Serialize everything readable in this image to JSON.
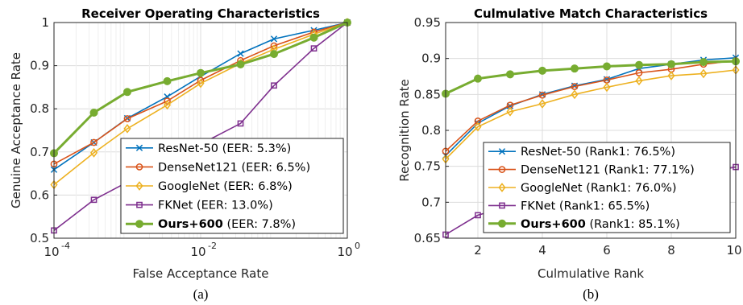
{
  "chart_data": [
    {
      "type": "line",
      "title": "Receiver Operating Characteristics",
      "xlabel": "False Acceptance Rate",
      "ylabel": "Genuine Acceptance Rate",
      "xscale": "log",
      "xlim": [
        0.0001,
        1
      ],
      "ylim": [
        0.5,
        1
      ],
      "xticks": [
        {
          "value": 0.0001,
          "base": "10",
          "exp": "-4"
        },
        {
          "value": 0.01,
          "base": "10",
          "exp": "-2"
        },
        {
          "value": 1,
          "base": "10",
          "exp": "0"
        }
      ],
      "yticks": [
        "0.5",
        "0.6",
        "0.7",
        "0.8",
        "0.9",
        "1"
      ],
      "grid": true,
      "legend_position": "bottom-right",
      "caption": "(a)",
      "series": [
        {
          "label_main": "ResNet-50",
          "label_rest": " (EER: 5.3%)",
          "color": "#0072BD",
          "marker": "x",
          "x": [
            0.0001,
            0.00035,
            0.001,
            0.0035,
            0.01,
            0.035,
            0.1,
            0.35,
            1
          ],
          "y": [
            0.659,
            0.722,
            0.778,
            0.828,
            0.875,
            0.928,
            0.962,
            0.982,
            1.0
          ]
        },
        {
          "label_main": "DenseNet121",
          "label_rest": " (EER: 6.5%)",
          "color": "#D95319",
          "marker": "o",
          "x": [
            0.0001,
            0.00035,
            0.001,
            0.0035,
            0.01,
            0.035,
            0.1,
            0.35,
            1
          ],
          "y": [
            0.672,
            0.722,
            0.777,
            0.818,
            0.866,
            0.912,
            0.946,
            0.978,
            1.0
          ]
        },
        {
          "label_main": "GoogleNet",
          "label_rest": " (EER: 6.8%)",
          "color": "#EDB120",
          "marker": "d",
          "x": [
            0.0001,
            0.00035,
            0.001,
            0.0035,
            0.01,
            0.035,
            0.1,
            0.35,
            1
          ],
          "y": [
            0.624,
            0.698,
            0.754,
            0.809,
            0.859,
            0.905,
            0.938,
            0.973,
            1.0
          ]
        },
        {
          "label_main": "FKNet",
          "label_rest": " (EER: 13.0%)",
          "color": "#7E2F8E",
          "marker": "s",
          "x": [
            0.0001,
            0.00035,
            0.001,
            0.035,
            0.1,
            0.35,
            1
          ],
          "y": [
            0.518,
            0.589,
            0.63,
            0.766,
            0.854,
            0.94,
            1.0
          ]
        },
        {
          "label_main": "Ours+600",
          "label_rest": " (EER: 7.8%)",
          "color": "#77AC30",
          "marker": "o",
          "bold": true,
          "x": [
            0.0001,
            0.00035,
            0.001,
            0.0035,
            0.01,
            0.035,
            0.1,
            0.35,
            1
          ],
          "y": [
            0.697,
            0.791,
            0.839,
            0.864,
            0.883,
            0.903,
            0.927,
            0.965,
            1.0
          ]
        }
      ]
    },
    {
      "type": "line",
      "title": "Culmulative Match Characteristics",
      "xlabel": "Culmulative Rank",
      "ylabel": "Recognition Rate",
      "xscale": "linear",
      "xlim": [
        1,
        10
      ],
      "ylim": [
        0.65,
        0.95
      ],
      "xticks": [
        "2",
        "4",
        "6",
        "8",
        "10"
      ],
      "yticks": [
        "0.65",
        "0.7",
        "0.75",
        "0.8",
        "0.85",
        "0.9",
        "0.95"
      ],
      "grid": true,
      "legend_position": "bottom-right",
      "caption": "(b)",
      "series": [
        {
          "label_main": "ResNet-50",
          "label_rest": " (Rank1: 76.5%)",
          "color": "#0072BD",
          "marker": "x",
          "x": [
            1,
            2,
            3,
            4,
            5,
            6,
            7,
            8,
            9,
            10
          ],
          "y": [
            0.765,
            0.81,
            0.834,
            0.85,
            0.862,
            0.871,
            0.886,
            0.892,
            0.898,
            0.901
          ]
        },
        {
          "label_main": "DenseNet121",
          "label_rest": " (Rank1: 77.1%)",
          "color": "#D95319",
          "marker": "o",
          "x": [
            1,
            2,
            3,
            4,
            5,
            6,
            7,
            8,
            9,
            10
          ],
          "y": [
            0.771,
            0.813,
            0.835,
            0.849,
            0.861,
            0.87,
            0.88,
            0.885,
            0.892,
            0.897
          ]
        },
        {
          "label_main": "GoogleNet",
          "label_rest": " (Rank1: 76.0%)",
          "color": "#EDB120",
          "marker": "d",
          "x": [
            1,
            2,
            3,
            4,
            5,
            6,
            7,
            8,
            9,
            10
          ],
          "y": [
            0.76,
            0.805,
            0.826,
            0.837,
            0.85,
            0.86,
            0.869,
            0.876,
            0.879,
            0.884
          ]
        },
        {
          "label_main": "FKNet",
          "label_rest": " (Rank1: 65.5%)",
          "color": "#7E2F8E",
          "marker": "s",
          "x": [
            1,
            2,
            3,
            10
          ],
          "y": [
            0.655,
            0.682,
            0.695,
            0.749
          ]
        },
        {
          "label_main": "Ours+600",
          "label_rest": " (Rank1: 85.1%)",
          "color": "#77AC30",
          "marker": "o",
          "bold": true,
          "x": [
            1,
            2,
            3,
            4,
            5,
            6,
            7,
            8,
            9,
            10
          ],
          "y": [
            0.851,
            0.872,
            0.878,
            0.883,
            0.886,
            0.889,
            0.891,
            0.892,
            0.895,
            0.896
          ]
        }
      ]
    }
  ]
}
